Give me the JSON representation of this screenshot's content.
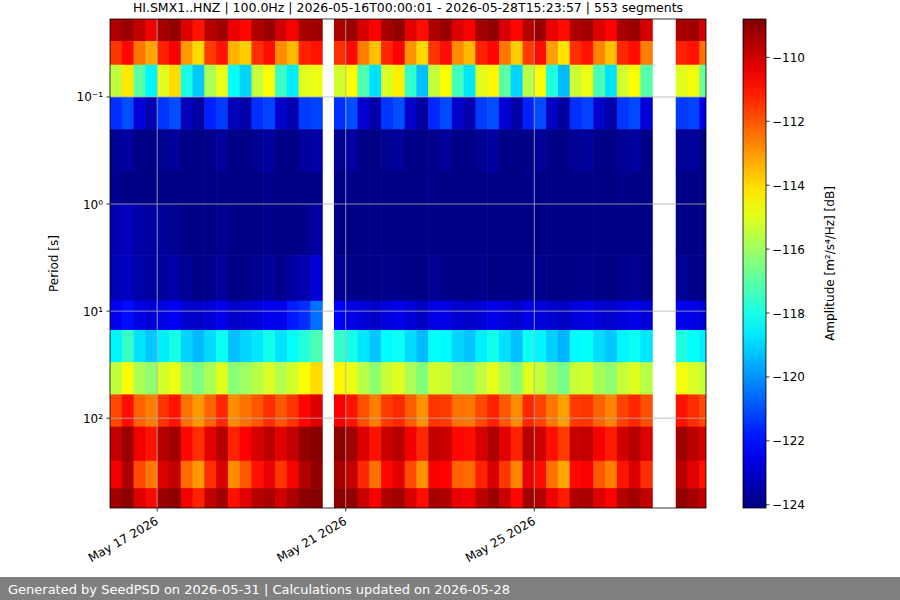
{
  "chart_data": {
    "type": "heatmap",
    "title": "HI.SMX1..HNZ | 100.0Hz | 2026-05-16T00:00:01 - 2026-05-28T15:23:57 | 553 segments",
    "y_label": "Period [s]",
    "log": "y",
    "grid": true,
    "xlim": [
      "2026-05-16T00:00:01",
      "2026-05-28T15:23:57"
    ],
    "xticks": [
      {
        "value": "2026-05-17",
        "label": "May 17 2026"
      },
      {
        "value": "2026-05-21",
        "label": "May 21 2026"
      },
      {
        "value": "2026-05-25",
        "label": "May 25 2026"
      }
    ],
    "ylim": [
      690,
      0.0187
    ],
    "yticks": [
      {
        "value": 0.1,
        "label": "10⁻¹"
      },
      {
        "value": 1,
        "label": "10⁰"
      },
      {
        "value": 10,
        "label": "10¹"
      },
      {
        "value": 100,
        "label": "10²"
      }
    ],
    "x": [
      "2026-05-16T00:00",
      "2026-05-16T06:00",
      "2026-05-16T12:00",
      "2026-05-16T18:00",
      "2026-05-17T00:00",
      "2026-05-17T06:00",
      "2026-05-17T12:00",
      "2026-05-17T18:00",
      "2026-05-18T00:00",
      "2026-05-18T06:00",
      "2026-05-18T12:00",
      "2026-05-18T18:00",
      "2026-05-19T00:00",
      "2026-05-19T06:00",
      "2026-05-19T12:00",
      "2026-05-19T18:00",
      "2026-05-20T00:00",
      "2026-05-20T06:00",
      "2026-05-20T12:00",
      "2026-05-20T18:00",
      "2026-05-21T00:00",
      "2026-05-21T06:00",
      "2026-05-21T12:00",
      "2026-05-21T18:00",
      "2026-05-22T00:00",
      "2026-05-22T06:00",
      "2026-05-22T12:00",
      "2026-05-22T18:00",
      "2026-05-23T00:00",
      "2026-05-23T06:00",
      "2026-05-23T12:00",
      "2026-05-23T18:00",
      "2026-05-24T00:00",
      "2026-05-24T06:00",
      "2026-05-24T12:00",
      "2026-05-24T18:00",
      "2026-05-25T00:00",
      "2026-05-25T06:00",
      "2026-05-25T12:00",
      "2026-05-25T18:00",
      "2026-05-26T00:00",
      "2026-05-26T06:00",
      "2026-05-26T12:00",
      "2026-05-26T18:00",
      "2026-05-27T00:00",
      "2026-05-27T06:00",
      "2026-05-27T12:00",
      "2026-05-27T18:00",
      "2026-05-28T00:00",
      "2026-05-28T06:00",
      "2026-05-28T12:00"
    ],
    "y_bins": [
      0.0187,
      0.03,
      0.05,
      0.1,
      0.2,
      0.5,
      1,
      3,
      8,
      15,
      30,
      60,
      120,
      250,
      450,
      690
    ],
    "cells": [
      [
        -109.5,
        -109.2,
        -109.8,
        -110.5,
        -109.4,
        -109.1,
        -110.2,
        -111,
        -109.6,
        -109.3,
        -110.4,
        -110.8,
        -109.5,
        -109.2,
        -110,
        -110.6,
        -109.4,
        -109.3,
        null,
        -109.5,
        -109.2,
        -110.1,
        -110.7,
        -109.4,
        -109.1,
        -110.3,
        -110.9,
        -109.5,
        -109.2,
        -110.2,
        -110.6,
        -109.3,
        -109.1,
        -110.1,
        -110.8,
        -109.6,
        -109.2,
        -110.4,
        -110.9,
        -109.5,
        -109.3,
        -110.2,
        -110.7,
        -109.4,
        -109.2,
        -110.1,
        null,
        null,
        -109.4,
        -109.3,
        -110
      ],
      [
        -111.5,
        -110.8,
        -112.5,
        -113.2,
        -111.2,
        -110.6,
        -113,
        -114,
        -111.6,
        -111,
        -113.4,
        -113.8,
        -111.4,
        -110.9,
        -112.8,
        -113.5,
        -111.2,
        -111,
        null,
        -111.4,
        -110.8,
        -112.6,
        -113.6,
        -111.3,
        -110.7,
        -112.9,
        -114,
        -111.5,
        -110.9,
        -112.8,
        -113.5,
        -111.2,
        -110.8,
        -112.5,
        -113.8,
        -111.6,
        -110.9,
        -113.1,
        -114.1,
        -111.4,
        -111,
        -112.7,
        -113.6,
        -111.3,
        -110.9,
        -112.6,
        null,
        null,
        -111.2,
        -111,
        -112.4
      ],
      [
        -115.5,
        -114.2,
        -117,
        -118.5,
        -115,
        -114,
        -118,
        -119.2,
        -115.8,
        -114.8,
        -118.3,
        -119,
        -115.4,
        -114.6,
        -117.5,
        -118.6,
        -115,
        -114.8,
        null,
        -115.2,
        -114.5,
        -117.2,
        -118.8,
        -115.1,
        -114.3,
        -117.6,
        -119.3,
        -115.4,
        -114.6,
        -117.4,
        -118.7,
        -115,
        -114.4,
        -117,
        -119,
        -115.6,
        -114.6,
        -117.9,
        -119.4,
        -115.3,
        -114.8,
        -117.3,
        -118.8,
        -115.2,
        -114.6,
        -117.1,
        null,
        null,
        -115,
        -114.7,
        -116.8
      ],
      [
        -121.5,
        -121,
        -122.8,
        -123.4,
        -121.4,
        -121,
        -123.2,
        -123.6,
        -121.7,
        -121.3,
        -123.3,
        -123.5,
        -121.5,
        -121.2,
        -123,
        -123.4,
        -121.3,
        -121.2,
        null,
        -121.5,
        -121,
        -122.9,
        -123.5,
        -121.4,
        -121,
        -123,
        -123.6,
        -121.6,
        -121.1,
        -123,
        -123.4,
        -121.3,
        -121,
        -122.8,
        -123.5,
        -121.7,
        -121.1,
        -123.1,
        -123.6,
        -121.5,
        -121.2,
        -122.9,
        -123.5,
        -121.4,
        -121.1,
        -122.8,
        null,
        null,
        -121.3,
        -121.2,
        -122.6
      ],
      [
        -123.8,
        -123.6,
        -124,
        -124,
        -123.8,
        -123.7,
        -124,
        -124,
        -123.9,
        -123.7,
        -124,
        -124,
        -123.8,
        -123.6,
        -124,
        -124,
        -123.7,
        -123.5,
        null,
        -123.8,
        -123.6,
        -124,
        -124,
        -123.8,
        -123.7,
        -124,
        -124,
        -123.9,
        -123.7,
        -124,
        -124,
        -123.8,
        -123.6,
        -124,
        -124,
        -123.9,
        -123.7,
        -124,
        -124,
        -123.8,
        -123.7,
        -124,
        -124,
        -123.8,
        -123.6,
        -124,
        null,
        null,
        -123.8,
        -123.7,
        -124
      ],
      [
        -123.9,
        -124,
        -124,
        -124,
        -124,
        -124,
        -124,
        -124,
        -124,
        -124,
        -124,
        -124,
        -124,
        -123.9,
        -124,
        -124,
        -124,
        -124,
        null,
        -124,
        -123.9,
        -124,
        -124,
        -124,
        -124,
        -124,
        -124,
        -123.9,
        -124,
        -124,
        -124,
        -124,
        -124,
        -124,
        -124,
        -123.9,
        -124,
        -124,
        -124,
        -124,
        -124,
        -124,
        -124,
        -123.9,
        -124,
        -124,
        null,
        null,
        -124,
        -124,
        -124
      ],
      [
        -123.4,
        -123.2,
        -123.5,
        -123.6,
        -123.7,
        -123.8,
        -124,
        -124,
        -124,
        -123.8,
        -124,
        -124,
        -124,
        -123.9,
        -124,
        -124,
        -123.9,
        -123.6,
        null,
        -124,
        -124,
        -124,
        -124,
        -124,
        -124,
        -124,
        -124,
        -124,
        -124,
        -124,
        -124,
        -124,
        -124,
        -124,
        -124,
        -124,
        -124,
        -124,
        -124,
        -124,
        -124,
        -124,
        -124,
        -124,
        -124,
        -124,
        null,
        null,
        -124,
        -124,
        -124
      ],
      [
        -123.3,
        -123.1,
        -123.5,
        -123.6,
        -123.6,
        -123.5,
        -123.8,
        -124,
        -123.9,
        -123.7,
        -124,
        -124,
        -123.8,
        -123.7,
        -123.9,
        -123.6,
        -123.4,
        -122.8,
        null,
        -123.8,
        -123.9,
        -124,
        -124,
        -123.9,
        -123.9,
        -124,
        -124,
        -123.8,
        -123.9,
        -124,
        -124,
        -123.9,
        -124,
        -124,
        -124,
        -123.9,
        -123.9,
        -124,
        -124,
        -124,
        -123.9,
        -124,
        -124,
        -123.9,
        -123.8,
        -124,
        null,
        null,
        -123.8,
        -123.9,
        -124
      ],
      [
        -122.4,
        -122,
        -122.6,
        -122.8,
        -122.6,
        -122.3,
        -122.9,
        -123,
        -122.8,
        -122.5,
        -123,
        -122.9,
        -122.7,
        -122.4,
        -122.5,
        -121.8,
        -121.5,
        -120.5,
        null,
        -122.2,
        -122.6,
        -122.8,
        -123,
        -122.7,
        -122.5,
        -122.8,
        -123.1,
        -122.6,
        -122.6,
        -122.9,
        -123,
        -122.8,
        -122.5,
        -122.7,
        -123,
        -122.6,
        -122.7,
        -122.9,
        -123.1,
        -122.7,
        -122.6,
        -122.8,
        -123,
        -122.7,
        -122.5,
        -122.8,
        null,
        null,
        -122.4,
        -122.6,
        -122.8
      ],
      [
        -118.5,
        -117.5,
        -118.8,
        -119.2,
        -118.6,
        -118,
        -119,
        -119.4,
        -118.9,
        -118.2,
        -119.3,
        -119,
        -118.7,
        -118.1,
        -118.8,
        -118.3,
        -117.8,
        -117.2,
        null,
        -117.6,
        -118,
        -118.7,
        -119.2,
        -118.4,
        -118.2,
        -118.9,
        -119.4,
        -118.3,
        -118.4,
        -119,
        -119.2,
        -118.6,
        -118.1,
        -118.8,
        -119.3,
        -118.2,
        -118.5,
        -119.1,
        -119.5,
        -118.4,
        -118.3,
        -118.9,
        -119.2,
        -118.5,
        -118.2,
        -118.7,
        null,
        null,
        -117.9,
        -118.3,
        -118.6
      ],
      [
        -115.5,
        -114.6,
        -115.8,
        -116.2,
        -115.2,
        -114.8,
        -116,
        -116.5,
        -115.8,
        -115,
        -116.3,
        -116,
        -115.6,
        -115.1,
        -115.7,
        -115.2,
        -114.6,
        -114,
        null,
        -114.4,
        -114.8,
        -115.6,
        -116.2,
        -115.3,
        -115,
        -115.8,
        -116.4,
        -115.2,
        -115.3,
        -116,
        -116.1,
        -115.5,
        -114.9,
        -115.7,
        -116.3,
        -115,
        -115.4,
        -116.1,
        -116.6,
        -115.3,
        -115.2,
        -115.9,
        -116.2,
        -115.4,
        -115,
        -115.6,
        null,
        null,
        -114.7,
        -115.1,
        -115.4
      ],
      [
        -111.8,
        -110.9,
        -112.2,
        -112.6,
        -111.5,
        -111,
        -112.4,
        -113,
        -112.2,
        -111.3,
        -112.8,
        -112.4,
        -112,
        -111.4,
        -112,
        -111.5,
        -110.8,
        -110.2,
        null,
        -110.6,
        -111,
        -111.9,
        -112.6,
        -111.6,
        -111.3,
        -112.1,
        -112.9,
        -111.5,
        -111.6,
        -112.4,
        -112.5,
        -111.8,
        -111.2,
        -112,
        -112.8,
        -111.3,
        -111.7,
        -112.5,
        -113.1,
        -111.6,
        -111.5,
        -112.2,
        -112.7,
        -111.7,
        -111.3,
        -111.9,
        null,
        null,
        -111,
        -111.4,
        -111.8
      ],
      [
        -109.8,
        -109.2,
        -110.5,
        -111,
        -109.6,
        -109.3,
        -110.8,
        -111.4,
        -110.3,
        -109.6,
        -111.2,
        -110.7,
        -110.1,
        -109.7,
        -110.3,
        -109.8,
        -109.1,
        -108.9,
        null,
        -109,
        -109.3,
        -110.2,
        -111,
        -109.9,
        -109.6,
        -110.5,
        -111.3,
        -109.8,
        -109.9,
        -110.8,
        -110.9,
        -110.1,
        -109.5,
        -110.3,
        -111.2,
        -109.6,
        -110,
        -110.9,
        -111.6,
        -109.9,
        -109.8,
        -110.6,
        -111.1,
        -110,
        -109.6,
        -110.2,
        null,
        null,
        -109.3,
        -109.7,
        -110.1
      ],
      [
        -110.5,
        -109.5,
        -111.8,
        -112.5,
        -110.2,
        -109.8,
        -112.3,
        -113,
        -111.4,
        -110.2,
        -112.8,
        -112,
        -111,
        -110.4,
        -111.5,
        -110.6,
        -109.5,
        -109.1,
        null,
        -109.4,
        -109.8,
        -111.3,
        -112.4,
        -110.8,
        -110.3,
        -111.8,
        -112.9,
        -110.6,
        -110.7,
        -112.2,
        -112.3,
        -111.2,
        -110.1,
        -111.5,
        -112.7,
        -110.4,
        -110.9,
        -112.4,
        -113.2,
        -110.8,
        -110.6,
        -112,
        -112.6,
        -111,
        -110.2,
        -111.4,
        null,
        null,
        -109.7,
        -110.3,
        -111
      ],
      [
        -109.3,
        -109,
        -110.2,
        -110.8,
        -109.2,
        -109,
        -110.5,
        -111.2,
        -109.8,
        -109.3,
        -110.9,
        -110.3,
        -109.6,
        -109.4,
        -110,
        -109.5,
        -109,
        -108.9,
        null,
        -109,
        -109.1,
        -109.9,
        -110.6,
        -109.5,
        -109.3,
        -110.1,
        -110.9,
        -109.4,
        -109.5,
        -110.4,
        -110.5,
        -109.7,
        -109.2,
        -109.9,
        -110.8,
        -109.3,
        -109.6,
        -110.5,
        -111.1,
        -109.5,
        -109.4,
        -110.2,
        -110.7,
        -109.6,
        -109.3,
        -109.8,
        null,
        null,
        -109.1,
        -109.4,
        -109.8
      ]
    ],
    "colorbar": {
      "range": [
        -124.1,
        -108.8
      ],
      "label": "Amplitude [m²/s⁴/Hz] [dB]",
      "ticks": [
        {
          "value": -124,
          "label": "−124"
        },
        {
          "value": -122,
          "label": "−122"
        },
        {
          "value": -120,
          "label": "−120"
        },
        {
          "value": -118,
          "label": "−118"
        },
        {
          "value": -116,
          "label": "−116"
        },
        {
          "value": -114,
          "label": "−114"
        },
        {
          "value": -112,
          "label": "−112"
        },
        {
          "value": -110,
          "label": "−110"
        }
      ]
    }
  },
  "footer": {
    "text": "Generated by SeedPSD on 2026-05-31 | Calculations updated on 2026-05-28"
  }
}
